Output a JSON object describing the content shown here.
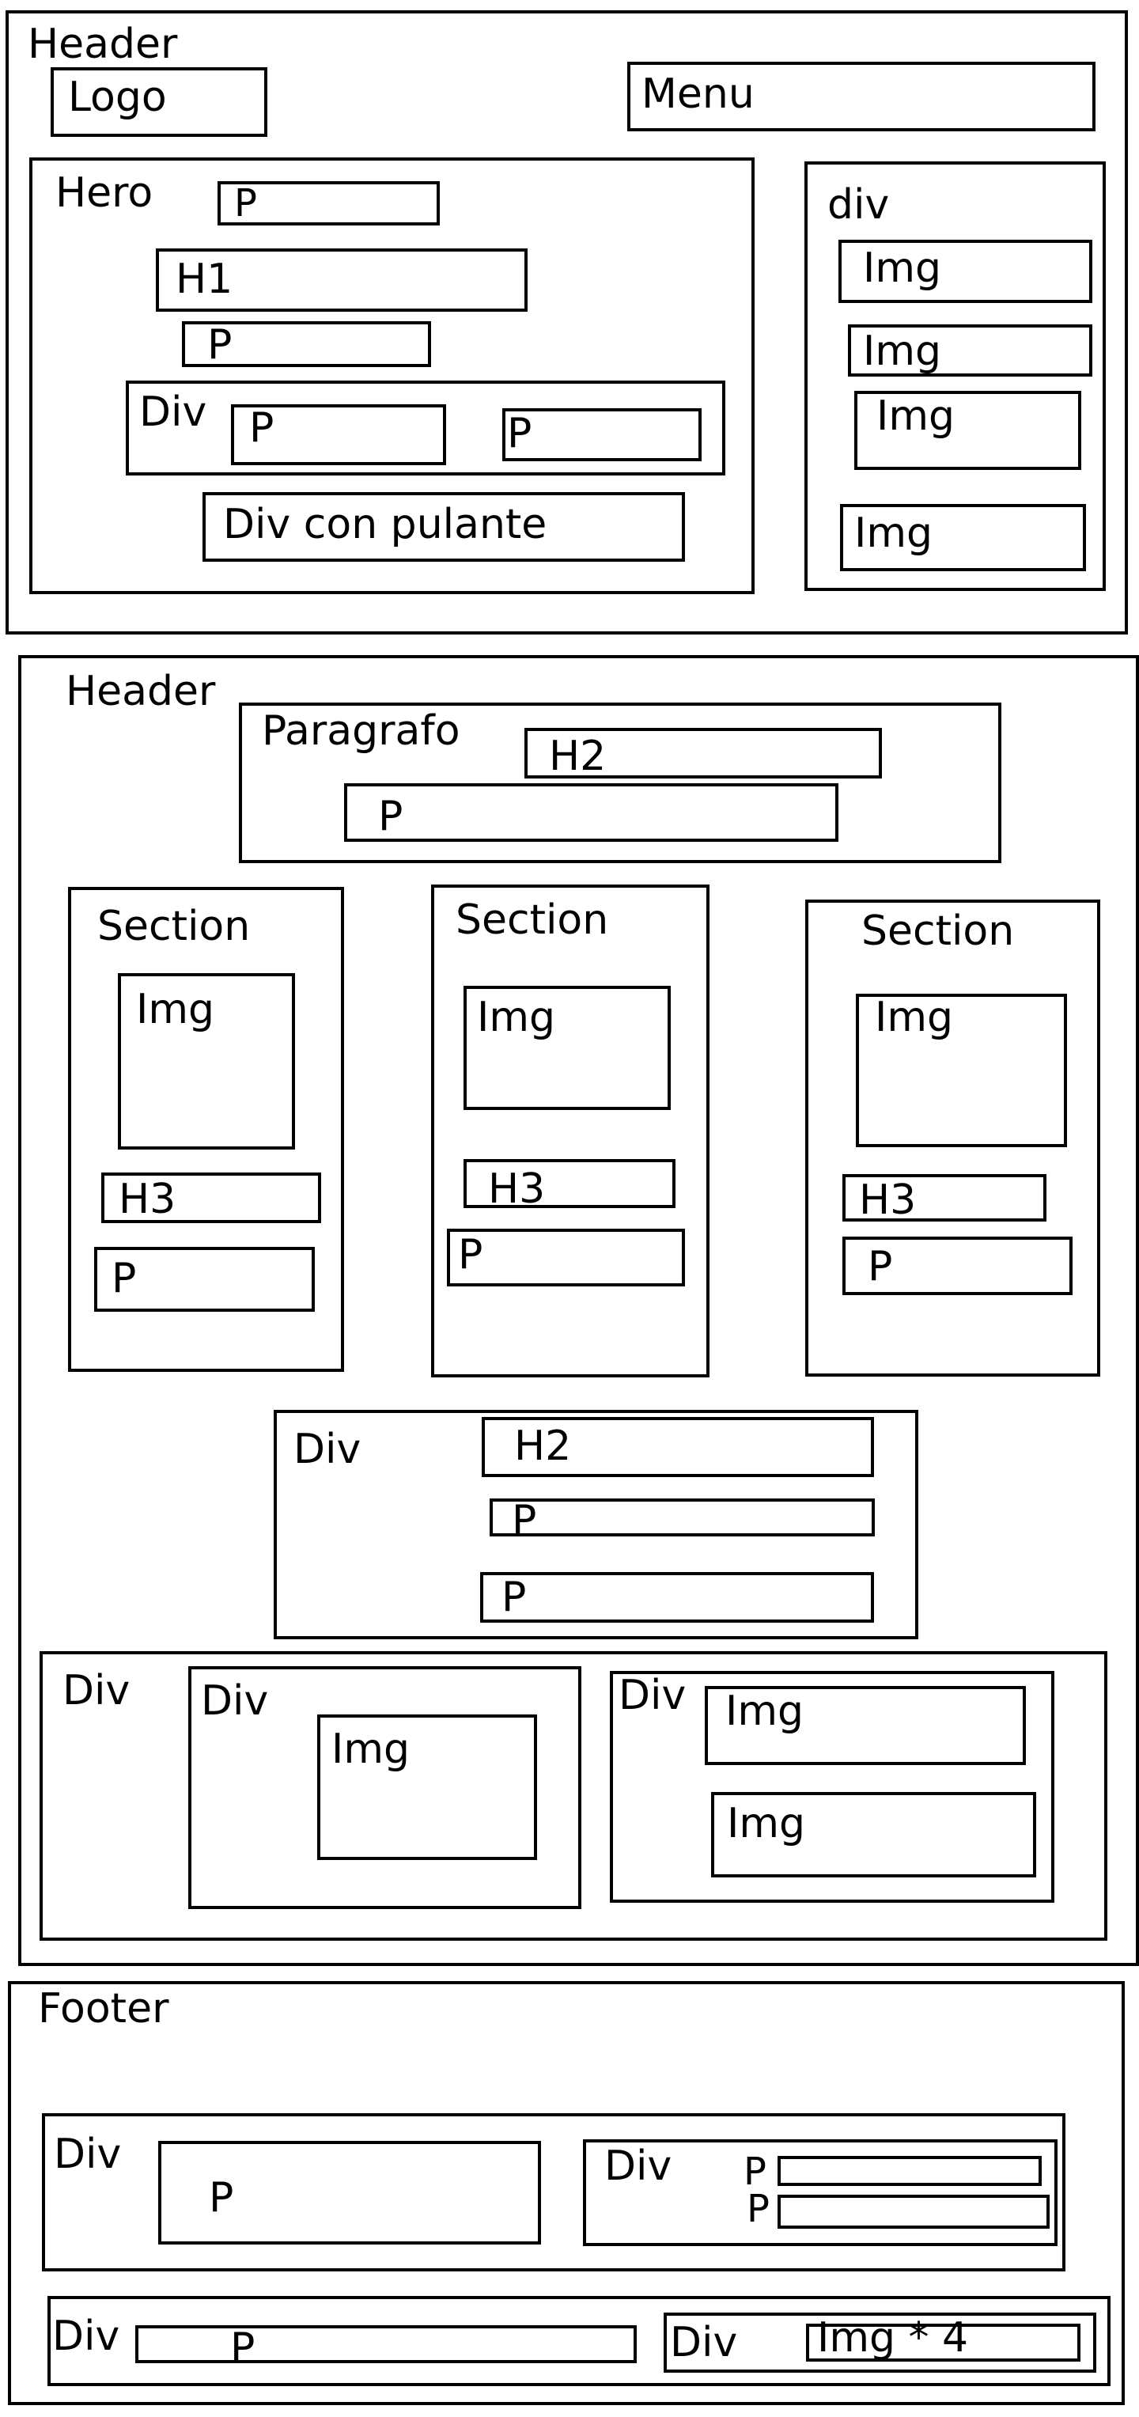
{
  "header1": {
    "label": "Header",
    "logo": "Logo",
    "menu": "Menu",
    "hero": {
      "label": "Hero",
      "p_top": "P",
      "h1": "H1",
      "p_mid": "P",
      "div": {
        "label": "Div",
        "p_left": "P",
        "p_right": "P"
      },
      "button_div": "Div con pulante"
    },
    "side": {
      "label": "div",
      "imgs": [
        "Img",
        "Img",
        "Img",
        "Img"
      ]
    }
  },
  "header2": {
    "label": "Header",
    "paragraph_block": {
      "label": "Paragrafo",
      "h2": "H2",
      "p": "P"
    },
    "sections": [
      {
        "label": "Section",
        "img": "Img",
        "h3": "H3",
        "p": "P"
      },
      {
        "label": "Section",
        "img": "Img",
        "h3": "H3",
        "p": "P"
      },
      {
        "label": "Section",
        "img": "Img",
        "h3": "H3",
        "p": "P"
      }
    ],
    "center_div": {
      "label": "Div",
      "h2": "H2",
      "p1": "P",
      "p2": "P"
    },
    "bottom_div": {
      "label": "Div",
      "left": {
        "label": "Div",
        "img": "Img"
      },
      "right": {
        "label": "Div",
        "img1": "Img",
        "img2": "Img"
      }
    }
  },
  "footer": {
    "label": "Footer",
    "row1": {
      "label": "Div",
      "p": "P",
      "inner": {
        "label": "Div",
        "p1": "P",
        "p2": "P"
      }
    },
    "row2": {
      "label": "Div",
      "p": "P",
      "inner": {
        "label": "Div",
        "img": "Img * 4"
      }
    }
  }
}
